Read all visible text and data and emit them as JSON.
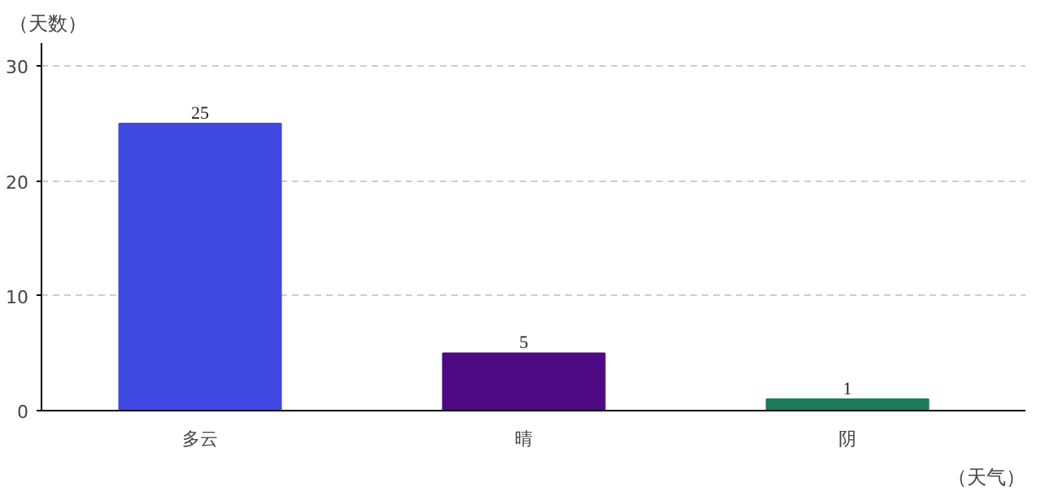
{
  "chart_data": {
    "type": "bar",
    "xlabel": "（天气）",
    "ylabel": "（天数）",
    "categories": [
      "多云",
      "晴",
      "阴"
    ],
    "values": [
      25,
      5,
      1
    ],
    "colors": [
      "#3f48e0",
      "#4e0a82",
      "#1e7a5c"
    ],
    "ylim": [
      0,
      32
    ],
    "yticks": [
      0,
      10,
      20,
      30
    ],
    "grid": "y",
    "data_labels": true
  }
}
